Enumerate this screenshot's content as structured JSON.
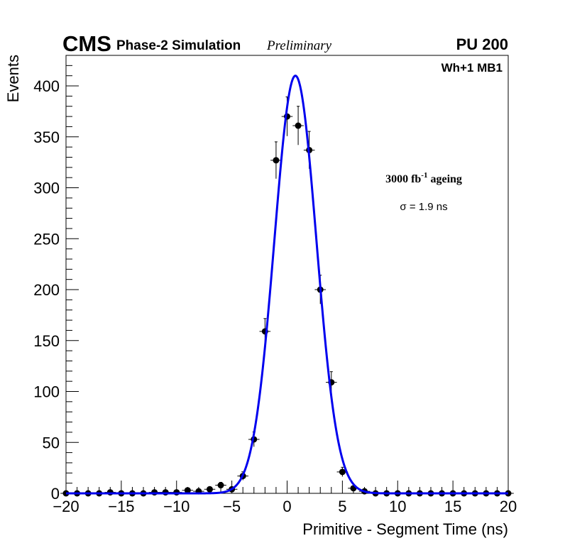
{
  "chart_data": {
    "type": "scatter",
    "header": {
      "experiment": "CMS",
      "subtitle": "Phase-2 Simulation",
      "status": "Preliminary",
      "pileup": "PU 200"
    },
    "region_label": "Wh+1 MB1",
    "ageing_label": "3000 fb",
    "ageing_superscript": "-1",
    "ageing_suffix": " ageing",
    "sigma_label": "σ = 1.9 ns",
    "xlabel": "Primitive - Segment Time (ns)",
    "ylabel": "Events",
    "xlim": [
      -20,
      20
    ],
    "ylim": [
      0,
      430
    ],
    "x_ticks": [
      -20,
      -15,
      -10,
      -5,
      0,
      5,
      10,
      15,
      20
    ],
    "x_tick_labels": [
      "−20",
      "−15",
      "−10",
      "−5",
      "0",
      "5",
      "10",
      "15",
      "20"
    ],
    "y_ticks": [
      0,
      50,
      100,
      150,
      200,
      250,
      300,
      350,
      400
    ],
    "y_tick_labels": [
      "0",
      "50",
      "100",
      "150",
      "200",
      "250",
      "300",
      "350",
      "400"
    ],
    "bin_width": 1,
    "series": [
      {
        "name": "Simulation",
        "x": [
          -20,
          -19,
          -18,
          -17,
          -16,
          -15,
          -14,
          -13,
          -12,
          -11,
          -10,
          -9,
          -8,
          -7,
          -6,
          -5,
          -4,
          -3,
          -2,
          -1,
          0,
          1,
          2,
          3,
          4,
          5,
          6,
          7,
          8,
          9,
          10,
          11,
          12,
          13,
          14,
          15,
          16,
          17,
          18,
          19,
          20
        ],
        "y": [
          0,
          0,
          0,
          0,
          1,
          0,
          0,
          0,
          1,
          1,
          1,
          3,
          2,
          4,
          8,
          4,
          17,
          53,
          159,
          327,
          370,
          361,
          337,
          200,
          109,
          21,
          5,
          2,
          0,
          0,
          0,
          0,
          0,
          0,
          0,
          0,
          0,
          0,
          0,
          0,
          0
        ]
      }
    ],
    "fit": {
      "name": "Gaussian fit",
      "type": "gaussian",
      "amplitude": 410,
      "mean": 0.75,
      "sigma": 1.9
    },
    "colors": {
      "fit": "#0000ee",
      "points": "#000000",
      "axes": "#000000"
    }
  }
}
